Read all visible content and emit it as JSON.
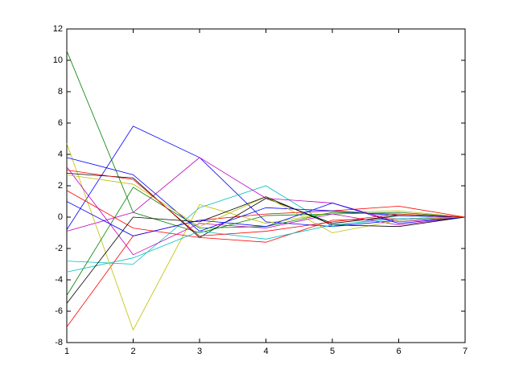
{
  "chart_data": {
    "type": "line",
    "x": [
      1,
      2,
      3,
      4,
      5,
      6,
      7
    ],
    "xlim": [
      1,
      7
    ],
    "xticks": [
      1,
      2,
      3,
      4,
      5,
      6,
      7
    ],
    "ylim": [
      -8,
      12
    ],
    "yticks": [
      -8,
      -6,
      -4,
      -2,
      0,
      2,
      4,
      6,
      8,
      10,
      12
    ],
    "grid": false,
    "series": [
      {
        "color": "#0000ff",
        "values": [
          -0.8,
          5.8,
          3.8,
          -0.3,
          -0.6,
          -0.2,
          0
        ]
      },
      {
        "color": "#008000",
        "values": [
          10.6,
          0.3,
          -1.0,
          0.1,
          0.2,
          0.3,
          0
        ]
      },
      {
        "color": "#ff0000",
        "values": [
          -7.0,
          -1.2,
          -0.2,
          0.2,
          0.4,
          0.7,
          0
        ]
      },
      {
        "color": "#00bfbf",
        "values": [
          -2.8,
          -3.0,
          0.6,
          2.0,
          -0.6,
          0.1,
          0
        ]
      },
      {
        "color": "#bf00bf",
        "values": [
          -0.9,
          0.3,
          3.8,
          1.2,
          0.9,
          -0.3,
          0
        ]
      },
      {
        "color": "#bfbf00",
        "values": [
          4.7,
          -7.2,
          0.8,
          -0.4,
          0.3,
          0.4,
          0
        ]
      },
      {
        "color": "#000000",
        "values": [
          2.8,
          2.5,
          -1.3,
          1.2,
          -0.4,
          0.1,
          0
        ]
      },
      {
        "color": "#0000ff",
        "values": [
          3.8,
          2.7,
          -0.9,
          0.6,
          0.4,
          0.1,
          0
        ]
      },
      {
        "color": "#008000",
        "values": [
          -5.0,
          1.9,
          -0.7,
          -0.6,
          0.3,
          0.2,
          0
        ]
      },
      {
        "color": "#ff0000",
        "values": [
          1.7,
          -0.7,
          -1.3,
          -1.6,
          -0.2,
          -0.1,
          0
        ]
      },
      {
        "color": "#00bfbf",
        "values": [
          -3.5,
          -2.6,
          -0.9,
          -1.4,
          -0.5,
          -0.1,
          0
        ]
      },
      {
        "color": "#bf00bf",
        "values": [
          3.2,
          -2.4,
          -0.4,
          -0.7,
          0.2,
          -0.5,
          0
        ]
      },
      {
        "color": "#bfbf00",
        "values": [
          2.7,
          2.1,
          -0.6,
          1.3,
          -1.0,
          -0.2,
          0
        ]
      },
      {
        "color": "#000000",
        "values": [
          -5.5,
          0.0,
          -0.3,
          1.3,
          -0.5,
          -0.6,
          0
        ]
      },
      {
        "color": "#0000ff",
        "values": [
          1.0,
          -1.2,
          -0.2,
          -0.6,
          0.9,
          -0.4,
          0
        ]
      },
      {
        "color": "#ff0000",
        "values": [
          3.0,
          2.4,
          -1.2,
          -0.9,
          -0.3,
          0.2,
          0
        ]
      }
    ]
  }
}
